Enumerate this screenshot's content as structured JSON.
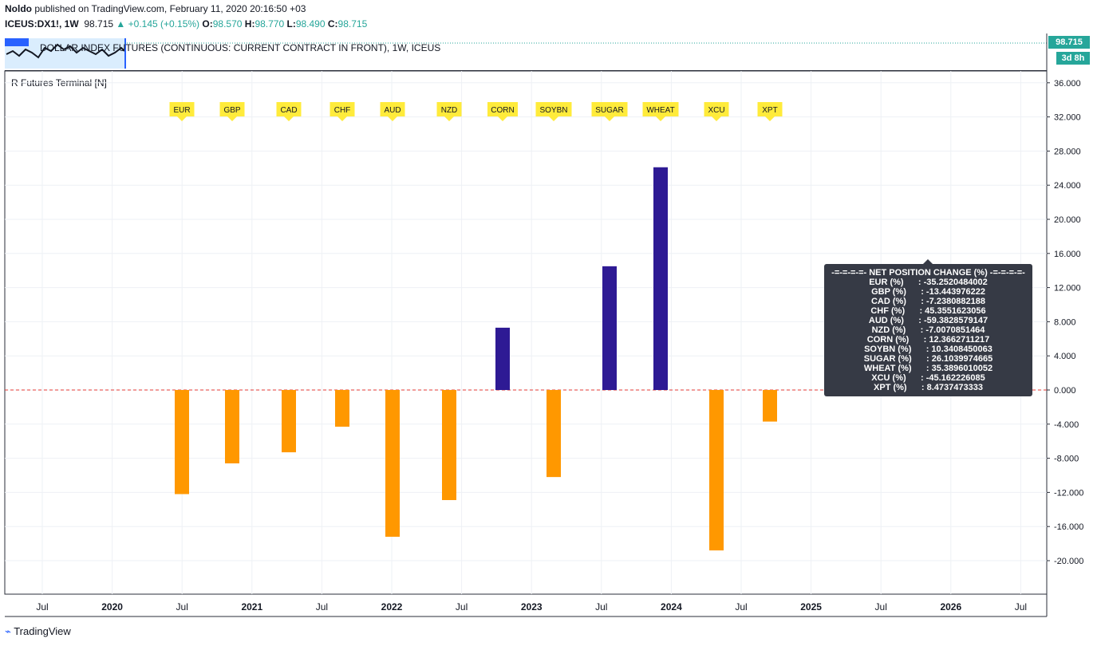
{
  "header": {
    "author": "Noldo",
    "published_text": "published on TradingView.com, February 11, 2020 20:16:50 +03"
  },
  "quote": {
    "symbol": "ICEUS:DX1!, 1W",
    "price": "98.715",
    "change": "+0.145 (+0.15%)",
    "open_label": "O:",
    "open": "98.570",
    "high_label": "H:",
    "high": "98.770",
    "low_label": "L:",
    "low": "98.490",
    "close_label": "C:",
    "close": "98.715"
  },
  "main_pane": {
    "title": "DOLLAR INDEX FUTURES (CONTINUOUS: CURRENT CONTRACT IN FRONT), 1W, ICEUS",
    "price_label": "98.715",
    "time_label": "3d 8h"
  },
  "indicator": {
    "title": "R Futures Terminal [N]"
  },
  "tooltip": {
    "heading": "-=-=-=-=- NET POSITION CHANGE (%) -=-=-=-=-",
    "rows": [
      "EUR (%)      : -35.2520484002",
      "GBP (%)      : -13.443976222",
      "CAD (%)      : -7.2380882188",
      "CHF (%)      : 45.3551623056",
      "AUD (%)      : -59.3828579147",
      "NZD (%)      : -7.0070851464",
      "CORN (%)      : 12.3662711217",
      "SOYBN (%)      : 10.3408450063",
      "SUGAR (%)      : 26.1039974665",
      "WHEAT (%)      : 35.3896010052",
      "XCU (%)      : -45.162226085",
      "XPT (%)      : 8.4737473333"
    ]
  },
  "footer": {
    "logo_text": "TradingView"
  },
  "colors": {
    "positive": "#2e1a94",
    "negative": "#ff9800",
    "label_bg": "#ffeb3b",
    "zero_line": "#e53935",
    "accent": "#26a69a"
  },
  "chart_data": {
    "type": "bar",
    "categories": [
      "EUR",
      "GBP",
      "CAD",
      "CHF",
      "AUD",
      "NZD",
      "CORN",
      "SOYBN",
      "SUGAR",
      "WHEAT",
      "XCU",
      "XPT"
    ],
    "values": [
      -12.2,
      -8.6,
      -7.3,
      -4.3,
      -17.2,
      -12.9,
      7.3,
      -10.2,
      14.5,
      26.1,
      -18.8,
      -3.7
    ],
    "ylim": [
      -24,
      36
    ],
    "yticks": [
      "36.000",
      "32.000",
      "28.000",
      "24.000",
      "20.000",
      "16.000",
      "12.000",
      "8.000",
      "4.000",
      "0.000",
      "-4.000",
      "-8.000",
      "-12.000",
      "-16.000",
      "-20.000"
    ],
    "ytick_values": [
      36,
      32,
      28,
      24,
      20,
      16,
      12,
      8,
      4,
      0,
      -4,
      -8,
      -12,
      -16,
      -20
    ],
    "xticks": [
      "Jul",
      "2020",
      "Jul",
      "2021",
      "Jul",
      "2022",
      "Jul",
      "2023",
      "Jul",
      "2024",
      "Jul",
      "2025",
      "Jul",
      "2026",
      "Jul"
    ],
    "xtick_bold": [
      false,
      true,
      false,
      true,
      false,
      true,
      false,
      true,
      false,
      true,
      false,
      true,
      false,
      true,
      false
    ],
    "grid": true,
    "zero_line": true
  }
}
